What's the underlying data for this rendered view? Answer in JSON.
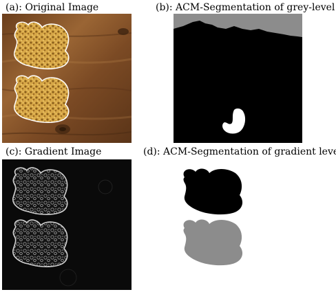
{
  "figure": {
    "panels": [
      {
        "caption": "(a): Original Image"
      },
      {
        "caption": "(b): ACM-Segmentation of grey-level"
      },
      {
        "caption": "(c): Gradient Image"
      },
      {
        "caption": "(d): ACM-Segmentation of gradient level"
      }
    ]
  },
  "colors": {
    "wood_dark": "#5a3418",
    "wood_mid": "#8a5a30",
    "wood_light": "#b07a44",
    "sponge_yellow": "#d8a848",
    "sponge_dark": "#8a5e1a",
    "outline": "#ffffff",
    "seg_black": "#000000",
    "seg_grey": "#8c8c8c",
    "seg_white": "#ffffff",
    "gradient_bg": "#0a0a0a",
    "gradient_edge": "#d0d0d0"
  }
}
